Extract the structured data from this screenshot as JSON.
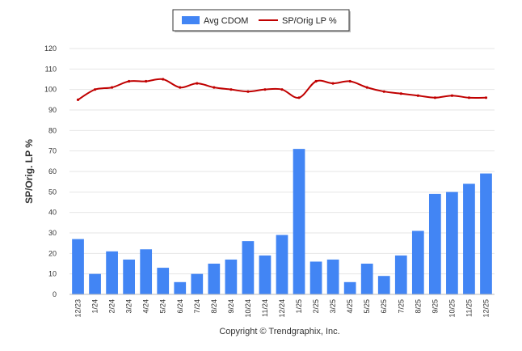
{
  "chart_data": {
    "type": "bar",
    "categories": [
      "12/23",
      "1/24",
      "2/24",
      "3/24",
      "4/24",
      "5/24",
      "6/24",
      "7/24",
      "8/24",
      "9/24",
      "10/24",
      "11/24",
      "12/24",
      "1/25",
      "2/25",
      "3/25",
      "4/25",
      "5/25",
      "6/25",
      "7/25",
      "8/25",
      "9/25",
      "10/25",
      "11/25",
      "12/25"
    ],
    "series": [
      {
        "name": "Avg CDOM",
        "type": "bar",
        "color": "#4285f4",
        "values": [
          27,
          10,
          21,
          17,
          22,
          13,
          6,
          10,
          15,
          17,
          26,
          19,
          29,
          71,
          16,
          17,
          6,
          15,
          9,
          19,
          31,
          49,
          50,
          54,
          59
        ]
      },
      {
        "name": "SP/Orig LP %",
        "type": "line",
        "color": "#c00000",
        "values": [
          95,
          100,
          101,
          104,
          104,
          105,
          101,
          103,
          101,
          100,
          99,
          100,
          100,
          96,
          104,
          103,
          104,
          101,
          99,
          98,
          97,
          96,
          97,
          96,
          96
        ]
      }
    ],
    "ylabel": "SP/Orig. LP %",
    "ylim": [
      0,
      120
    ],
    "yticks": [
      0,
      10,
      20,
      30,
      40,
      50,
      60,
      70,
      80,
      90,
      100,
      110,
      120
    ],
    "grid": true,
    "legend_position": "top-center"
  },
  "footer": {
    "copyright": "Copyright © Trendgraphix, Inc."
  }
}
